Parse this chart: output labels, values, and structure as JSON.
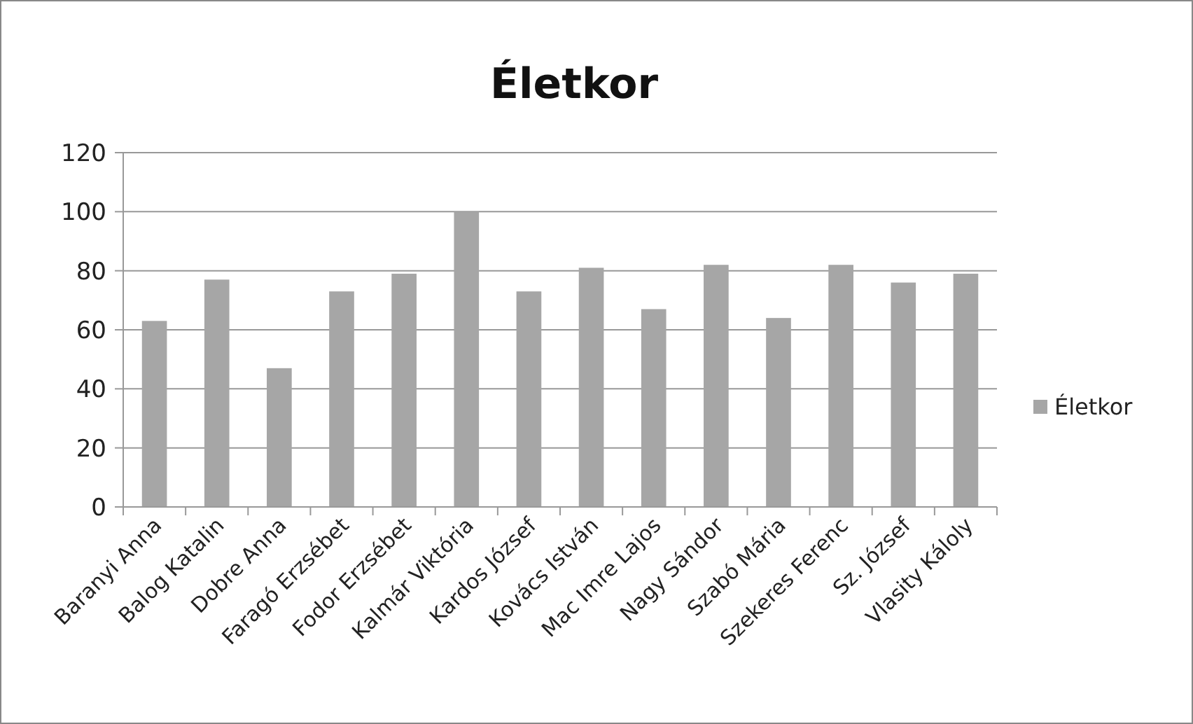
{
  "chart_data": {
    "type": "bar",
    "title": "Életkor",
    "categories": [
      "Baranyi Anna",
      "Balog Katalin",
      "Dobre Anna",
      "Faragó Erzsébet",
      "Fodor Erzsébet",
      "Kalmár Viktória",
      "Kardos József",
      "Kovács István",
      "Mac Imre Lajos",
      "Nagy Sándor",
      "Szabó Mária",
      "Szekeres Ferenc",
      "Sz. József",
      "Vlasity Káloly"
    ],
    "series": [
      {
        "name": "Életkor",
        "color": "#a6a6a6",
        "values": [
          63,
          77,
          47,
          73,
          79,
          100,
          73,
          81,
          67,
          82,
          64,
          82,
          76,
          79
        ]
      }
    ],
    "ylim": [
      0,
      120
    ],
    "yticks": [
      0,
      20,
      40,
      60,
      80,
      100,
      120
    ],
    "grid": "y",
    "legend": "right"
  }
}
